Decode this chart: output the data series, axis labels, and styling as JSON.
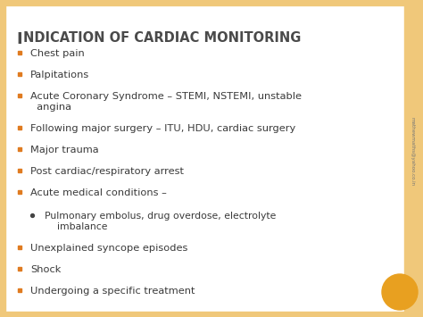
{
  "title_part1": "I",
  "title_part2": "NDICATION OF CARDIAC MONITORING",
  "title_color": "#4a4a4a",
  "title_fontsize_big": 13,
  "title_fontsize_small": 10.5,
  "background_color": "#ffffff",
  "border_color": "#f0c87a",
  "bullet_color": "#e07b20",
  "sub_bullet_color": "#555555",
  "text_color": "#3a3a3a",
  "bullet_items": [
    "Chest pain",
    "Palpitations",
    "Acute Coronary Syndrome – STEMI, NSTEMI, unstable\n  angina",
    "Following major surgery – ITU, HDU, cardiac surgery",
    "Major trauma",
    "Post cardiac/respiratory arrest",
    "Acute medical conditions –",
    "Unexplained syncope episodes",
    "Shock",
    "Undergoing a specific treatment"
  ],
  "sub_bullet_item": "Pulmonary embolus, drug overdose, electrolyte\n    imbalance",
  "sub_bullet_after_index": 6,
  "circle_color": "#e8a020",
  "sidebar_text": "mathewmaths@yahoo.co.in",
  "fontsize": 8.2,
  "sub_fontsize": 7.8
}
